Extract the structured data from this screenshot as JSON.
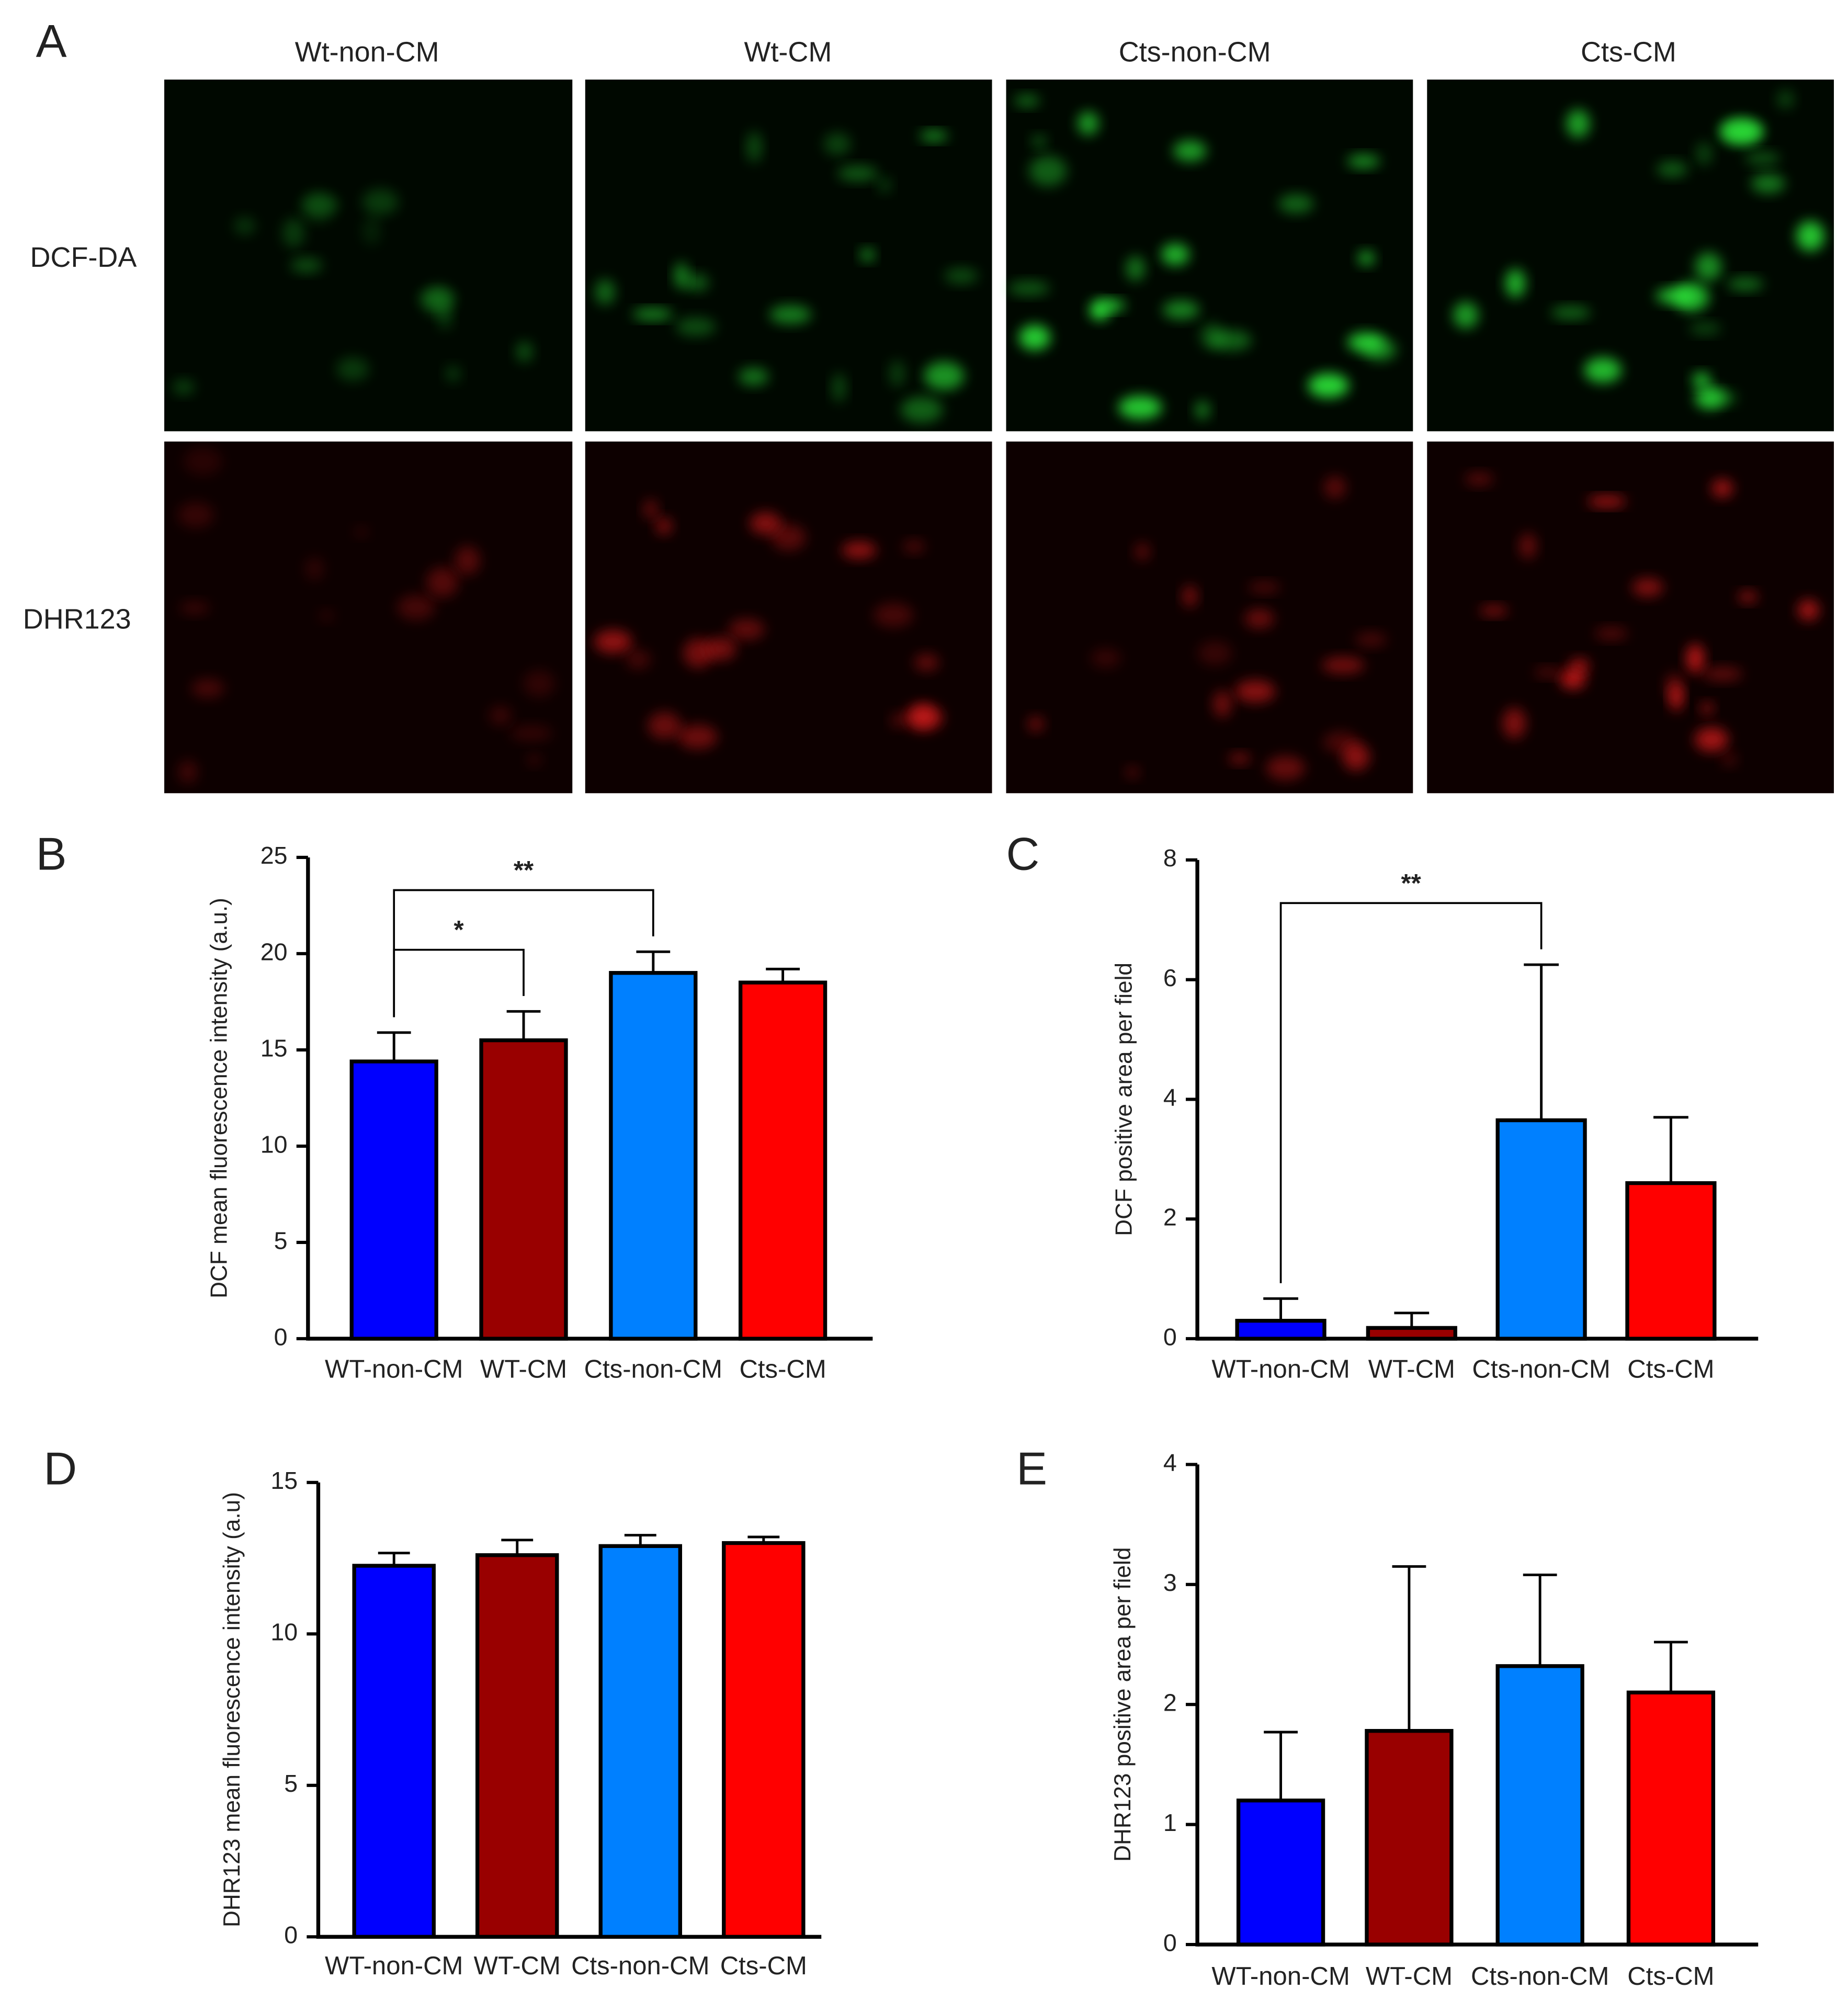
{
  "panel_a": {
    "panel": "A",
    "columns": [
      "Wt-non-CM",
      "Wt-CM",
      "Cts-non-CM",
      "Cts-CM"
    ],
    "rows": [
      "DCF-DA",
      "DHR123"
    ]
  },
  "chart_data": [
    {
      "type": "bar",
      "panel": "B",
      "y_label": "DCF mean fluorescence intensity (a.u.)",
      "categories": [
        "WT-non-CM",
        "WT-CM",
        "Cts-non-CM",
        "Cts-CM"
      ],
      "values": [
        14.4,
        15.5,
        19.0,
        18.5
      ],
      "errors": [
        1.5,
        1.5,
        1.1,
        0.7
      ],
      "colors": [
        "#0000ff",
        "#990000",
        "#0080ff",
        "#ff0000"
      ],
      "ylim": [
        0,
        25
      ],
      "yticks": [
        0,
        5,
        10,
        15,
        20,
        25
      ],
      "annotations": [
        {
          "text": "*",
          "between": [
            "WT-non-CM",
            "WT-CM"
          ]
        },
        {
          "text": "**",
          "between": [
            "WT-non-CM",
            "Cts-non-CM"
          ]
        }
      ]
    },
    {
      "type": "bar",
      "panel": "C",
      "y_label": "DCF positive area per field",
      "categories": [
        "WT-non-CM",
        "WT-CM",
        "Cts-non-CM",
        "Cts-CM"
      ],
      "values": [
        0.3,
        0.18,
        3.65,
        2.6
      ],
      "errors": [
        0.37,
        0.25,
        2.6,
        1.1
      ],
      "colors": [
        "#0000ff",
        "#990000",
        "#0080ff",
        "#ff0000"
      ],
      "ylim": [
        0,
        8
      ],
      "yticks": [
        0,
        2,
        4,
        6,
        8
      ],
      "annotations": [
        {
          "text": "**",
          "between": [
            "WT-non-CM",
            "Cts-non-CM"
          ]
        }
      ]
    },
    {
      "type": "bar",
      "panel": "D",
      "y_label": "DHR123 mean fluorescence intensity (a.u)",
      "categories": [
        "WT-non-CM",
        "WT-CM",
        "Cts-non-CM",
        "Cts-CM"
      ],
      "values": [
        12.25,
        12.6,
        12.9,
        13.0
      ],
      "errors": [
        0.42,
        0.5,
        0.36,
        0.2
      ],
      "colors": [
        "#0000ff",
        "#990000",
        "#0080ff",
        "#ff0000"
      ],
      "ylim": [
        0,
        15
      ],
      "yticks": [
        0,
        5,
        10,
        15
      ],
      "annotations": []
    },
    {
      "type": "bar",
      "panel": "E",
      "y_label": "DHR123 positive area per field",
      "categories": [
        "WT-non-CM",
        "WT-CM",
        "Cts-non-CM",
        "Cts-CM"
      ],
      "values": [
        1.2,
        1.78,
        2.32,
        2.1
      ],
      "errors": [
        0.57,
        1.37,
        0.76,
        0.42
      ],
      "colors": [
        "#0000ff",
        "#990000",
        "#0080ff",
        "#ff0000"
      ],
      "ylim": [
        0,
        4
      ],
      "yticks": [
        0,
        1,
        2,
        3,
        4
      ],
      "annotations": []
    }
  ]
}
